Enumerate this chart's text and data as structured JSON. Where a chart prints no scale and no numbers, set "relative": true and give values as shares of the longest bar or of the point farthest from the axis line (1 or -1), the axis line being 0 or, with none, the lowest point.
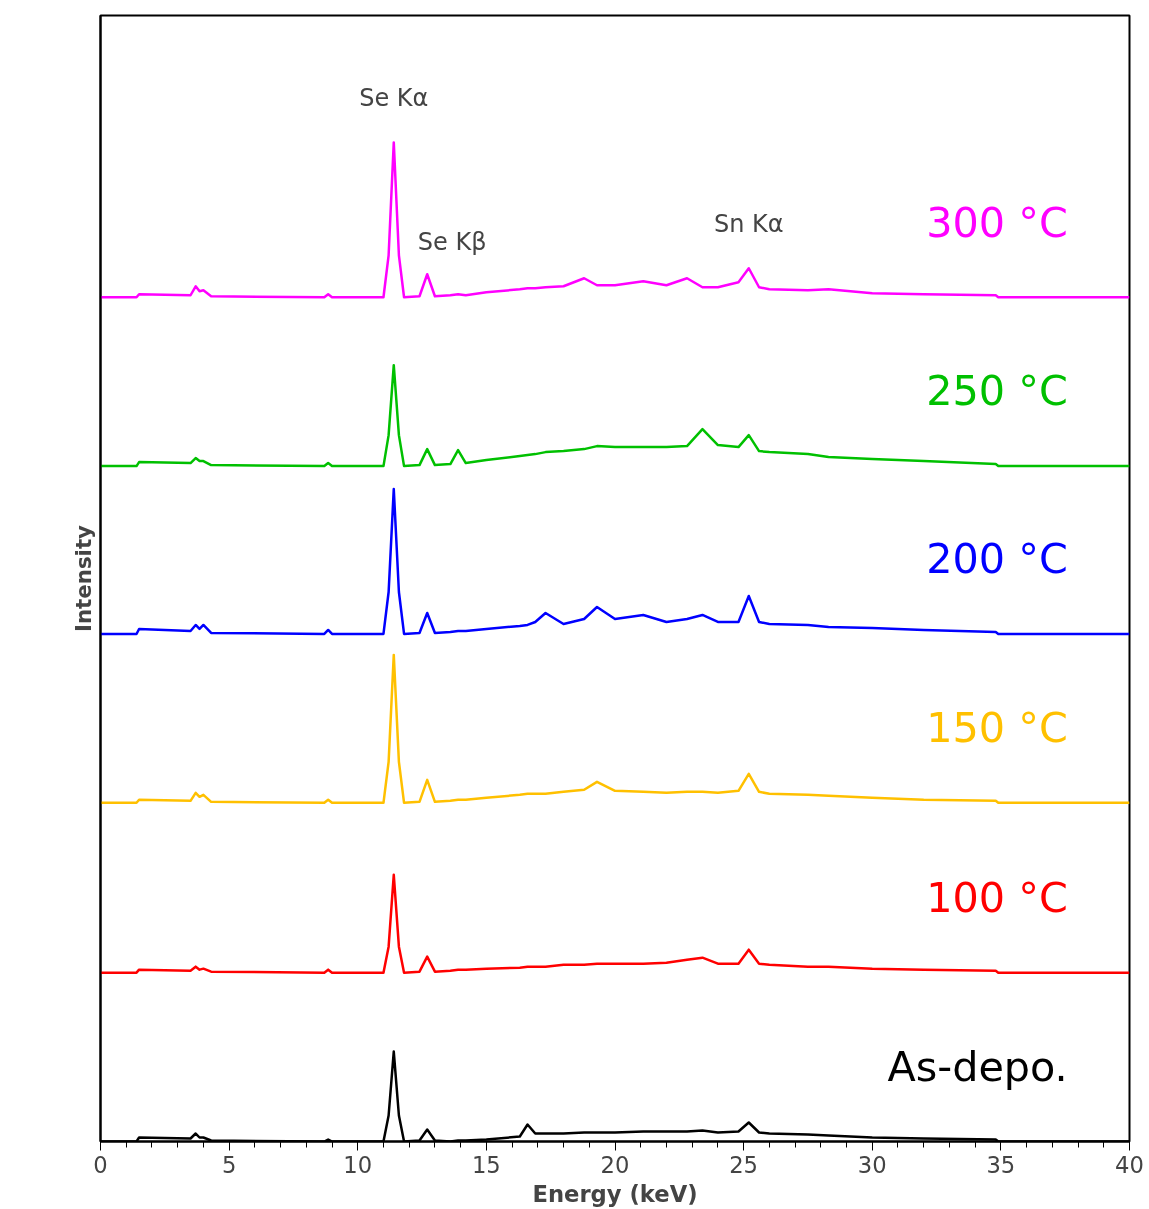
{
  "chart_data": {
    "type": "line",
    "relative": true,
    "xlabel": "Energy (keV)",
    "ylabel": "Intensity",
    "x": [
      0,
      1.4,
      1.5,
      3.5,
      3.7,
      3.85,
      4.0,
      4.3,
      8.7,
      8.85,
      9.0,
      11.0,
      11.2,
      11.4,
      11.6,
      11.8,
      12.4,
      12.7,
      13.0,
      13.6,
      13.9,
      14.2,
      15,
      16.3,
      16.6,
      16.9,
      17.3,
      18.0,
      18.8,
      19.3,
      20,
      21.1,
      22,
      22.8,
      23.4,
      24,
      24.8,
      25.2,
      25.6,
      26,
      27.5,
      28.3,
      30,
      32,
      34.8,
      34.9,
      40
    ],
    "xlim": [
      0,
      40
    ],
    "xticks": [
      0,
      5,
      10,
      15,
      20,
      25,
      30,
      35,
      40
    ],
    "grid": false,
    "legend": false,
    "marker": "none",
    "line_style": "solid",
    "annotations": [
      {
        "text": "Se Kα",
        "x": 11.4,
        "y": 1.0
      },
      {
        "text": "Se Kβ",
        "x": 12.7,
        "y": 0.868
      },
      {
        "text": "Sn Kα",
        "x": 25.2,
        "y": 0.874
      }
    ],
    "series": [
      {
        "name": "As-depo.",
        "color": "#000000",
        "values": [
          0,
          0,
          0.004,
          0.003,
          0.008,
          0.004,
          0.004,
          0.001,
          0,
          0.002,
          0,
          0,
          0.026,
          0.09,
          0.026,
          0,
          0.001,
          0.012,
          0.001,
          0,
          0.001,
          0.001,
          0.002,
          0.005,
          0.017,
          0.008,
          0.008,
          0.008,
          0.009,
          0.009,
          0.009,
          0.01,
          0.01,
          0.01,
          0.011,
          0.009,
          0.01,
          0.019,
          0.009,
          0.008,
          0.007,
          0.006,
          0.004,
          0.003,
          0.002,
          0,
          0
        ]
      },
      {
        "name": "100 °C",
        "color": "#ff0000",
        "values": [
          0.169,
          0.169,
          0.172,
          0.171,
          0.175,
          0.172,
          0.173,
          0.17,
          0.169,
          0.172,
          0.169,
          0.169,
          0.195,
          0.267,
          0.195,
          0.169,
          0.17,
          0.185,
          0.17,
          0.171,
          0.172,
          0.172,
          0.173,
          0.174,
          0.175,
          0.175,
          0.175,
          0.177,
          0.177,
          0.178,
          0.178,
          0.178,
          0.179,
          0.182,
          0.184,
          0.178,
          0.178,
          0.192,
          0.178,
          0.177,
          0.175,
          0.175,
          0.173,
          0.172,
          0.171,
          0.169,
          0.169
        ]
      },
      {
        "name": "150 °C",
        "color": "#ffc000",
        "values": [
          0.339,
          0.339,
          0.342,
          0.341,
          0.349,
          0.345,
          0.347,
          0.34,
          0.339,
          0.342,
          0.339,
          0.339,
          0.38,
          0.487,
          0.38,
          0.339,
          0.34,
          0.362,
          0.34,
          0.341,
          0.342,
          0.342,
          0.344,
          0.347,
          0.348,
          0.348,
          0.348,
          0.35,
          0.352,
          0.36,
          0.351,
          0.35,
          0.349,
          0.35,
          0.35,
          0.349,
          0.351,
          0.368,
          0.35,
          0.348,
          0.347,
          0.346,
          0.344,
          0.342,
          0.341,
          0.339,
          0.339
        ]
      },
      {
        "name": "200 °C",
        "color": "#0000ff",
        "values": [
          0.508,
          0.508,
          0.513,
          0.511,
          0.517,
          0.513,
          0.517,
          0.509,
          0.508,
          0.512,
          0.508,
          0.508,
          0.55,
          0.653,
          0.55,
          0.508,
          0.509,
          0.529,
          0.509,
          0.51,
          0.511,
          0.511,
          0.513,
          0.516,
          0.517,
          0.52,
          0.529,
          0.518,
          0.523,
          0.535,
          0.523,
          0.527,
          0.52,
          0.523,
          0.527,
          0.52,
          0.52,
          0.546,
          0.52,
          0.518,
          0.517,
          0.515,
          0.514,
          0.512,
          0.51,
          0.508,
          0.508
        ]
      },
      {
        "name": "250 °C",
        "color": "#00c000",
        "values": [
          0.676,
          0.676,
          0.68,
          0.679,
          0.684,
          0.681,
          0.681,
          0.677,
          0.676,
          0.679,
          0.676,
          0.676,
          0.707,
          0.777,
          0.707,
          0.676,
          0.677,
          0.693,
          0.677,
          0.678,
          0.692,
          0.679,
          0.682,
          0.686,
          0.687,
          0.688,
          0.69,
          0.691,
          0.693,
          0.696,
          0.695,
          0.695,
          0.695,
          0.696,
          0.713,
          0.697,
          0.695,
          0.707,
          0.691,
          0.69,
          0.688,
          0.685,
          0.683,
          0.681,
          0.678,
          0.676,
          0.676
        ]
      },
      {
        "name": "300 °C",
        "color": "#ff00ff",
        "values": [
          0.845,
          0.845,
          0.848,
          0.847,
          0.856,
          0.851,
          0.852,
          0.846,
          0.845,
          0.848,
          0.845,
          0.845,
          0.887,
          1.0,
          0.887,
          0.845,
          0.846,
          0.868,
          0.846,
          0.847,
          0.848,
          0.847,
          0.85,
          0.853,
          0.854,
          0.854,
          0.855,
          0.856,
          0.864,
          0.857,
          0.857,
          0.861,
          0.857,
          0.864,
          0.855,
          0.855,
          0.86,
          0.874,
          0.855,
          0.853,
          0.852,
          0.853,
          0.849,
          0.848,
          0.847,
          0.845,
          0.845
        ]
      }
    ]
  }
}
